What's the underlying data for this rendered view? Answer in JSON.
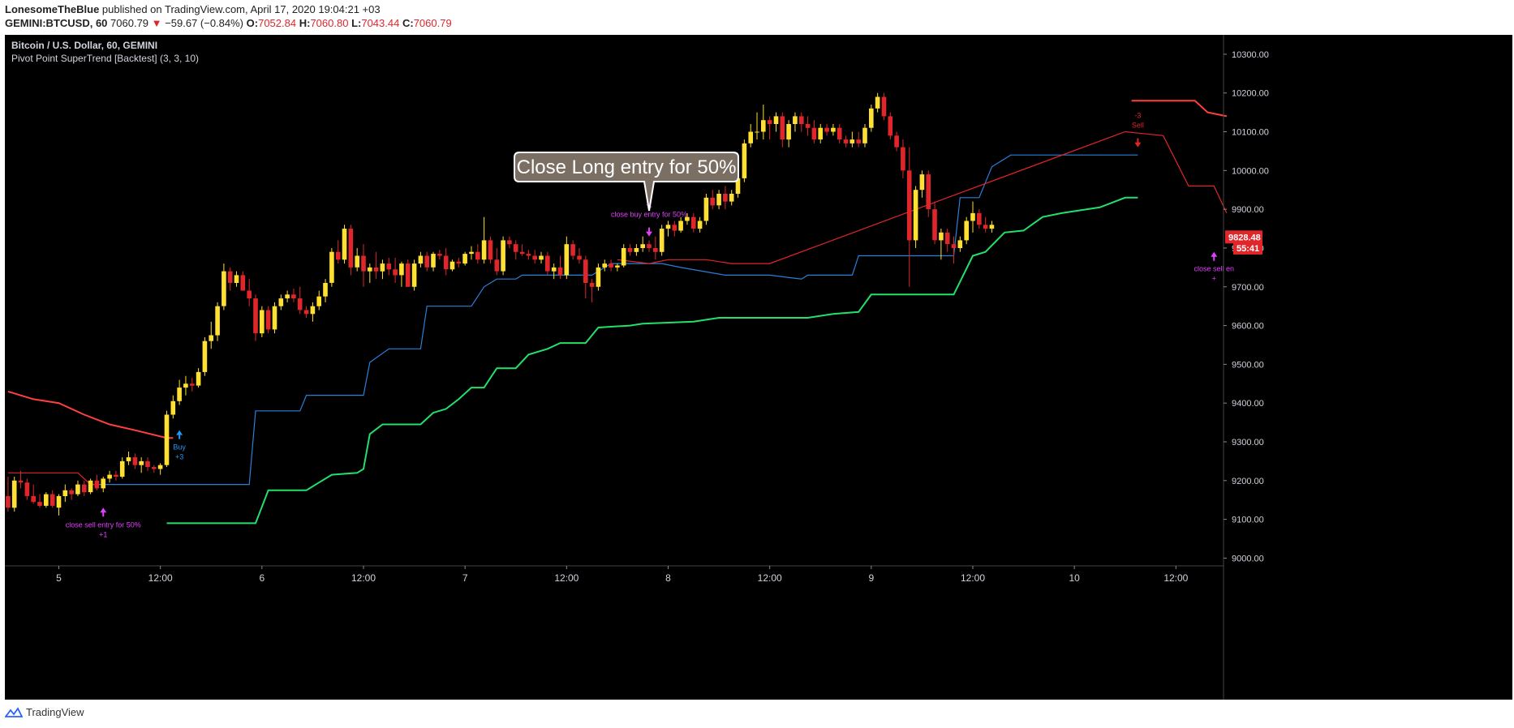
{
  "header": {
    "author": "LonesomeTheBlue",
    "published_text": " published on TradingView.com, April 17, 2020 19:04:21 +03",
    "symbol": "GEMINI:BTCUSD, 60",
    "last": "7060.79",
    "change_arrow": "▼",
    "change": "−59.67 (−0.84%)",
    "o_label": "O:",
    "o_value": "7052.84",
    "h_label": "H:",
    "h_value": "7060.80",
    "l_label": "L:",
    "l_value": "7043.44",
    "c_label": "C:",
    "c_value": "7060.79"
  },
  "legend": {
    "title": "Bitcoin / U.S. Dollar, 60, GEMINI",
    "indicator": "Pivot Point SuperTrend [Backtest] (3, 3, 10)"
  },
  "footer": {
    "brand": "TradingView"
  },
  "colors": {
    "background": "#000000",
    "up_candle": "#ffe033",
    "down_candle": "#e0262b",
    "supertrend_up": "#22e06b",
    "supertrend_down": "#ff4040",
    "pivot_line_blue": "#2b7fd8",
    "pivot_line_red": "#e0262b",
    "signal_magenta": "#e040fb",
    "signal_blue": "#2196f3"
  },
  "chart_data": {
    "type": "candlestick",
    "ylim": [
      8980,
      10350
    ],
    "y_ticks": [
      "10300.00",
      "10200.00",
      "10100.00",
      "10000.00",
      "9900.00",
      "9800.00",
      "9700.00",
      "9600.00",
      "9500.00",
      "9400.00",
      "9300.00",
      "9200.00",
      "9100.00",
      "9000.00"
    ],
    "x_ticks": [
      "5",
      "12:00",
      "6",
      "12:00",
      "7",
      "12:00",
      "8",
      "12:00",
      "9",
      "12:00",
      "10",
      "12:00"
    ],
    "x_tick_index": [
      8,
      24,
      40,
      56,
      72,
      88,
      104,
      120,
      136,
      152,
      168,
      184
    ],
    "bar_count": 192,
    "price_tags": [
      {
        "label": "9828.48",
        "value": 9828.48
      },
      {
        "label": "55:41",
        "value": 9800
      }
    ],
    "callout": "Close Long entry for 50%",
    "annotations": [
      {
        "text": "close sell entry for 50%",
        "sub": "+1",
        "index": 15,
        "value": 9130,
        "color": "magenta",
        "pos": "below"
      },
      {
        "text": "Buy",
        "sub": "+3",
        "index": 27,
        "value": 9330,
        "color": "blue",
        "pos": "below"
      },
      {
        "text": "close buy entry for 50%",
        "sub": "-1",
        "index": 101,
        "value": 9830,
        "color": "magenta",
        "pos": "above"
      },
      {
        "text": "Sell",
        "sub": "-3",
        "index": 178,
        "value": 10060,
        "color": "red",
        "pos": "above"
      },
      {
        "text": "close sell en",
        "sub": "+",
        "index": 190,
        "value": 9790,
        "color": "magenta",
        "pos": "below"
      }
    ],
    "supertrend_green": [
      [
        25,
        9090
      ],
      [
        39,
        9090
      ],
      [
        41,
        9175
      ],
      [
        47,
        9175
      ],
      [
        49,
        9195
      ],
      [
        51,
        9215
      ],
      [
        55,
        9220
      ],
      [
        56,
        9230
      ],
      [
        57,
        9320
      ],
      [
        59,
        9345
      ],
      [
        65,
        9345
      ],
      [
        67,
        9375
      ],
      [
        69,
        9385
      ],
      [
        71,
        9410
      ],
      [
        73,
        9440
      ],
      [
        75,
        9440
      ],
      [
        77,
        9490
      ],
      [
        80,
        9490
      ],
      [
        82,
        9525
      ],
      [
        85,
        9540
      ],
      [
        87,
        9555
      ],
      [
        91,
        9555
      ],
      [
        93,
        9595
      ],
      [
        98,
        9600
      ],
      [
        100,
        9605
      ],
      [
        108,
        9610
      ],
      [
        110,
        9615
      ],
      [
        112,
        9620
      ],
      [
        126,
        9620
      ],
      [
        130,
        9630
      ],
      [
        134,
        9635
      ],
      [
        136,
        9680
      ],
      [
        149,
        9680
      ],
      [
        152,
        9780
      ],
      [
        154,
        9790
      ],
      [
        157,
        9840
      ],
      [
        160,
        9845
      ],
      [
        163,
        9880
      ],
      [
        166,
        9890
      ],
      [
        172,
        9905
      ],
      [
        176,
        9930
      ],
      [
        178,
        9930
      ]
    ],
    "supertrend_red": [
      [
        0,
        9430
      ],
      [
        4,
        9410
      ],
      [
        8,
        9400
      ],
      [
        12,
        9370
      ],
      [
        16,
        9345
      ],
      [
        20,
        9330
      ],
      [
        25,
        9310
      ],
      [
        26,
        9310
      ]
    ],
    "supertrend_red2": [
      [
        177,
        10180
      ],
      [
        187,
        10180
      ],
      [
        189,
        10150
      ],
      [
        192,
        10140
      ]
    ],
    "pivot_blue": [
      [
        14,
        9190
      ],
      [
        38,
        9190
      ],
      [
        39,
        9380
      ],
      [
        46,
        9380
      ],
      [
        47,
        9420
      ],
      [
        56,
        9420
      ],
      [
        57,
        9505
      ],
      [
        60,
        9540
      ],
      [
        65,
        9540
      ],
      [
        66,
        9650
      ],
      [
        73,
        9650
      ],
      [
        75,
        9700
      ],
      [
        77,
        9720
      ],
      [
        80,
        9720
      ],
      [
        81,
        9730
      ],
      [
        92,
        9730
      ],
      [
        95,
        9760
      ],
      [
        103,
        9760
      ],
      [
        106,
        9750
      ],
      [
        113,
        9730
      ],
      [
        120,
        9730
      ],
      [
        125,
        9720
      ],
      [
        126,
        9730
      ],
      [
        133,
        9730
      ],
      [
        134,
        9780
      ],
      [
        149,
        9780
      ],
      [
        150,
        9930
      ],
      [
        153,
        9930
      ],
      [
        155,
        10010
      ],
      [
        158,
        10040
      ],
      [
        170,
        10040
      ],
      [
        171,
        10040
      ],
      [
        176,
        10040
      ],
      [
        178,
        10040
      ]
    ],
    "pivot_red": [
      [
        0,
        9220
      ],
      [
        11,
        9220
      ],
      [
        13,
        9190
      ],
      [
        14,
        9190
      ]
    ],
    "pivot_red2": [
      [
        96,
        9770
      ],
      [
        101,
        9760
      ],
      [
        104,
        9770
      ],
      [
        110,
        9770
      ],
      [
        114,
        9760
      ],
      [
        120,
        9760
      ],
      [
        176,
        10100
      ],
      [
        182,
        10090
      ],
      [
        186,
        9960
      ],
      [
        190,
        9960
      ],
      [
        192,
        9890
      ]
    ],
    "candles": [
      [
        9160,
        9210,
        9120,
        9130
      ],
      [
        9130,
        9210,
        9120,
        9200
      ],
      [
        9200,
        9225,
        9180,
        9195
      ],
      [
        9195,
        9205,
        9150,
        9160
      ],
      [
        9160,
        9190,
        9140,
        9145
      ],
      [
        9145,
        9165,
        9130,
        9135
      ],
      [
        9135,
        9170,
        9130,
        9165
      ],
      [
        9165,
        9175,
        9130,
        9135
      ],
      [
        9130,
        9165,
        9110,
        9160
      ],
      [
        9160,
        9190,
        9145,
        9175
      ],
      [
        9175,
        9180,
        9150,
        9165
      ],
      [
        9165,
        9200,
        9160,
        9190
      ],
      [
        9190,
        9200,
        9160,
        9170
      ],
      [
        9170,
        9205,
        9165,
        9200
      ],
      [
        9200,
        9215,
        9175,
        9180
      ],
      [
        9180,
        9210,
        9170,
        9205
      ],
      [
        9205,
        9225,
        9195,
        9215
      ],
      [
        9215,
        9225,
        9200,
        9210
      ],
      [
        9210,
        9260,
        9205,
        9250
      ],
      [
        9250,
        9275,
        9240,
        9260
      ],
      [
        9260,
        9270,
        9230,
        9240
      ],
      [
        9240,
        9260,
        9220,
        9250
      ],
      [
        9250,
        9260,
        9225,
        9235
      ],
      [
        9235,
        9240,
        9220,
        9230
      ],
      [
        9230,
        9245,
        9215,
        9240
      ],
      [
        9240,
        9380,
        9235,
        9370
      ],
      [
        9370,
        9420,
        9360,
        9405
      ],
      [
        9405,
        9460,
        9395,
        9440
      ],
      [
        9440,
        9470,
        9420,
        9450
      ],
      [
        9450,
        9465,
        9430,
        9445
      ],
      [
        9445,
        9490,
        9440,
        9480
      ],
      [
        9480,
        9570,
        9470,
        9560
      ],
      [
        9560,
        9610,
        9540,
        9575
      ],
      [
        9575,
        9660,
        9560,
        9650
      ],
      [
        9650,
        9760,
        9640,
        9740
      ],
      [
        9740,
        9750,
        9690,
        9710
      ],
      [
        9710,
        9740,
        9700,
        9730
      ],
      [
        9730,
        9740,
        9690,
        9690
      ],
      [
        9690,
        9720,
        9650,
        9670
      ],
      [
        9670,
        9680,
        9560,
        9580
      ],
      [
        9580,
        9650,
        9570,
        9640
      ],
      [
        9640,
        9650,
        9580,
        9590
      ],
      [
        9590,
        9660,
        9580,
        9650
      ],
      [
        9650,
        9680,
        9640,
        9670
      ],
      [
        9670,
        9690,
        9660,
        9680
      ],
      [
        9680,
        9695,
        9660,
        9670
      ],
      [
        9670,
        9700,
        9630,
        9640
      ],
      [
        9640,
        9650,
        9620,
        9630
      ],
      [
        9630,
        9660,
        9610,
        9650
      ],
      [
        9650,
        9690,
        9640,
        9675
      ],
      [
        9675,
        9720,
        9660,
        9710
      ],
      [
        9710,
        9800,
        9700,
        9790
      ],
      [
        9790,
        9820,
        9760,
        9770
      ],
      [
        9770,
        9860,
        9760,
        9850
      ],
      [
        9850,
        9860,
        9730,
        9750
      ],
      [
        9750,
        9800,
        9740,
        9780
      ],
      [
        9780,
        9810,
        9700,
        9740
      ],
      [
        9740,
        9760,
        9710,
        9750
      ],
      [
        9750,
        9790,
        9720,
        9740
      ],
      [
        9740,
        9770,
        9720,
        9760
      ],
      [
        9760,
        9775,
        9730,
        9745
      ],
      [
        9745,
        9775,
        9710,
        9730
      ],
      [
        9730,
        9765,
        9700,
        9760
      ],
      [
        9760,
        9770,
        9700,
        9700
      ],
      [
        9700,
        9770,
        9690,
        9760
      ],
      [
        9760,
        9790,
        9750,
        9780
      ],
      [
        9780,
        9790,
        9740,
        9750
      ],
      [
        9750,
        9790,
        9740,
        9785
      ],
      [
        9785,
        9795,
        9770,
        9780
      ],
      [
        9780,
        9800,
        9730,
        9745
      ],
      [
        9745,
        9770,
        9740,
        9765
      ],
      [
        9765,
        9775,
        9750,
        9760
      ],
      [
        9760,
        9790,
        9755,
        9785
      ],
      [
        9785,
        9805,
        9770,
        9790
      ],
      [
        9790,
        9810,
        9760,
        9770
      ],
      [
        9770,
        9880,
        9760,
        9820
      ],
      [
        9820,
        9830,
        9760,
        9770
      ],
      [
        9770,
        9800,
        9730,
        9740
      ],
      [
        9740,
        9830,
        9730,
        9820
      ],
      [
        9820,
        9830,
        9800,
        9810
      ],
      [
        9810,
        9820,
        9770,
        9790
      ],
      [
        9790,
        9810,
        9780,
        9785
      ],
      [
        9785,
        9795,
        9770,
        9780
      ],
      [
        9780,
        9795,
        9760,
        9770
      ],
      [
        9770,
        9790,
        9760,
        9780
      ],
      [
        9780,
        9790,
        9730,
        9740
      ],
      [
        9740,
        9760,
        9720,
        9750
      ],
      [
        9750,
        9780,
        9720,
        9730
      ],
      [
        9730,
        9830,
        9720,
        9810
      ],
      [
        9810,
        9820,
        9770,
        9780
      ],
      [
        9780,
        9800,
        9760,
        9770
      ],
      [
        9770,
        9780,
        9670,
        9710
      ],
      [
        9710,
        9720,
        9660,
        9700
      ],
      [
        9700,
        9760,
        9690,
        9750
      ],
      [
        9750,
        9770,
        9740,
        9760
      ],
      [
        9760,
        9770,
        9740,
        9750
      ],
      [
        9750,
        9760,
        9740,
        9755
      ],
      [
        9755,
        9810,
        9750,
        9800
      ],
      [
        9800,
        9810,
        9780,
        9790
      ],
      [
        9790,
        9810,
        9780,
        9800
      ],
      [
        9800,
        9830,
        9790,
        9810
      ],
      [
        9810,
        9820,
        9790,
        9800
      ],
      [
        9800,
        9830,
        9770,
        9790
      ],
      [
        9790,
        9860,
        9780,
        9850
      ],
      [
        9850,
        9870,
        9830,
        9860
      ],
      [
        9860,
        9870,
        9830,
        9845
      ],
      [
        9845,
        9880,
        9840,
        9870
      ],
      [
        9870,
        9890,
        9860,
        9880
      ],
      [
        9880,
        9890,
        9840,
        9850
      ],
      [
        9850,
        9880,
        9840,
        9870
      ],
      [
        9870,
        9940,
        9860,
        9930
      ],
      [
        9930,
        9950,
        9900,
        9910
      ],
      [
        9910,
        9950,
        9900,
        9940
      ],
      [
        9940,
        9960,
        9900,
        9920
      ],
      [
        9920,
        9950,
        9910,
        9940
      ],
      [
        9940,
        9990,
        9930,
        9980
      ],
      [
        9980,
        10080,
        9970,
        10070
      ],
      [
        10070,
        10120,
        10060,
        10100
      ],
      [
        10100,
        10150,
        10080,
        10100
      ],
      [
        10100,
        10170,
        10080,
        10130
      ],
      [
        10130,
        10140,
        10080,
        10120
      ],
      [
        10120,
        10150,
        10100,
        10140
      ],
      [
        10140,
        10150,
        10060,
        10080
      ],
      [
        10080,
        10130,
        10060,
        10120
      ],
      [
        10120,
        10150,
        10100,
        10140
      ],
      [
        10140,
        10150,
        10100,
        10120
      ],
      [
        10120,
        10140,
        10090,
        10110
      ],
      [
        10110,
        10130,
        10070,
        10080
      ],
      [
        10080,
        10120,
        10070,
        10110
      ],
      [
        10110,
        10120,
        10090,
        10100
      ],
      [
        10100,
        10120,
        10090,
        10110
      ],
      [
        10110,
        10120,
        10070,
        10080
      ],
      [
        10080,
        10090,
        10060,
        10070
      ],
      [
        10070,
        10100,
        10060,
        10080
      ],
      [
        10080,
        10100,
        10060,
        10070
      ],
      [
        10070,
        10120,
        10060,
        10110
      ],
      [
        10110,
        10170,
        10100,
        10160
      ],
      [
        10160,
        10200,
        10150,
        10190
      ],
      [
        10190,
        10200,
        10130,
        10140
      ],
      [
        10140,
        10150,
        10080,
        10090
      ],
      [
        10090,
        10100,
        10050,
        10060
      ],
      [
        10060,
        10080,
        9980,
        10000
      ],
      [
        10000,
        10060,
        9700,
        9820
      ],
      [
        9820,
        9960,
        9800,
        9950
      ],
      [
        9950,
        10000,
        9930,
        9990
      ],
      [
        9990,
        10000,
        9880,
        9900
      ],
      [
        9900,
        9920,
        9810,
        9820
      ],
      [
        9820,
        9850,
        9770,
        9840
      ],
      [
        9840,
        9850,
        9790,
        9810
      ],
      [
        9810,
        9830,
        9760,
        9800
      ],
      [
        9800,
        9830,
        9790,
        9820
      ],
      [
        9820,
        9880,
        9810,
        9870
      ],
      [
        9870,
        9920,
        9840,
        9890
      ],
      [
        9890,
        9900,
        9850,
        9860
      ],
      [
        9860,
        9880,
        9840,
        9850
      ],
      [
        9850,
        9870,
        9840,
        9860
      ]
    ]
  }
}
